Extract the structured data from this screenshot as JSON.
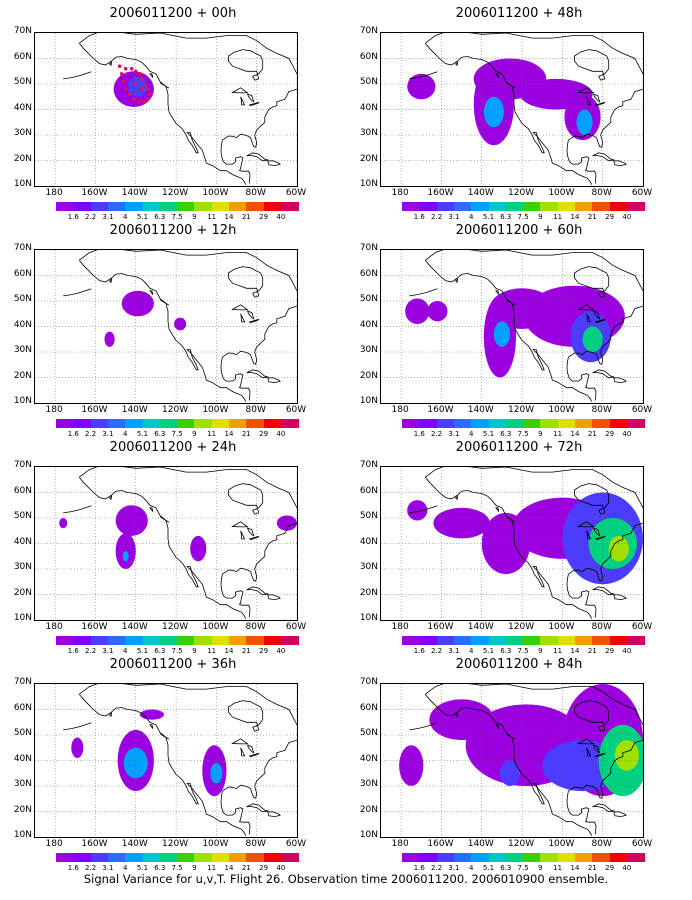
{
  "panels": [
    {
      "title": "2006011200 + 00h",
      "blobs": [
        {
          "lon": -141,
          "lat": 48,
          "rlon": 10,
          "rlat": 7,
          "level": 0
        },
        {
          "lon": -139,
          "lat": 49,
          "rlon": 5,
          "rlat": 4,
          "level": 1
        }
      ],
      "dots": true
    },
    {
      "title": "2006011200 + 48h",
      "blobs": [
        {
          "lon": -170,
          "lat": 49,
          "rlon": 7,
          "rlat": 5,
          "level": 0
        },
        {
          "lon": -134,
          "lat": 42,
          "rlon": 10,
          "rlat": 16,
          "level": 0
        },
        {
          "lon": -126,
          "lat": 52,
          "rlon": 18,
          "rlat": 8,
          "level": 0
        },
        {
          "lon": -103,
          "lat": 46,
          "rlon": 18,
          "rlat": 6,
          "level": 0
        },
        {
          "lon": -90,
          "lat": 37,
          "rlon": 9,
          "rlat": 9,
          "level": 0
        },
        {
          "lon": -134,
          "lat": 39,
          "rlon": 5,
          "rlat": 6,
          "level": 2
        },
        {
          "lon": -89,
          "lat": 35,
          "rlon": 4,
          "rlat": 5,
          "level": 2
        }
      ]
    },
    {
      "title": "2006011200 + 12h",
      "blobs": [
        {
          "lon": -139,
          "lat": 49,
          "rlon": 8,
          "rlat": 5,
          "level": 0
        },
        {
          "lon": -153,
          "lat": 35,
          "rlon": 2.5,
          "rlat": 3,
          "level": 0
        },
        {
          "lon": -118,
          "lat": 41,
          "rlon": 3,
          "rlat": 2.5,
          "level": 0
        }
      ]
    },
    {
      "title": "2006011200 + 60h",
      "blobs": [
        {
          "lon": -172,
          "lat": 46,
          "rlon": 6,
          "rlat": 5,
          "level": 0
        },
        {
          "lon": -162,
          "lat": 46,
          "rlon": 5,
          "rlat": 4,
          "level": 0
        },
        {
          "lon": -131,
          "lat": 36,
          "rlon": 8,
          "rlat": 16,
          "level": 0
        },
        {
          "lon": -120,
          "lat": 47,
          "rlon": 16,
          "rlat": 8,
          "level": 0
        },
        {
          "lon": -94,
          "lat": 44,
          "rlon": 25,
          "rlat": 12,
          "level": 0
        },
        {
          "lon": -86,
          "lat": 36,
          "rlon": 10,
          "rlat": 10,
          "level": 1
        },
        {
          "lon": -130,
          "lat": 37,
          "rlon": 4,
          "rlat": 5,
          "level": 2
        },
        {
          "lon": -85,
          "lat": 35,
          "rlon": 5,
          "rlat": 5,
          "level": 3
        }
      ]
    },
    {
      "title": "2006011200 + 24h",
      "blobs": [
        {
          "lon": -176,
          "lat": 48,
          "rlon": 2,
          "rlat": 2,
          "level": 0
        },
        {
          "lon": -142,
          "lat": 49,
          "rlon": 8,
          "rlat": 6,
          "level": 0
        },
        {
          "lon": -145,
          "lat": 37,
          "rlon": 5,
          "rlat": 7,
          "level": 0
        },
        {
          "lon": -109,
          "lat": 38,
          "rlon": 4,
          "rlat": 5,
          "level": 0
        },
        {
          "lon": -65,
          "lat": 48,
          "rlon": 5,
          "rlat": 3,
          "level": 0
        },
        {
          "lon": -145,
          "lat": 35,
          "rlon": 1.5,
          "rlat": 2,
          "level": 2
        }
      ]
    },
    {
      "title": "2006011200 + 72h",
      "blobs": [
        {
          "lon": -172,
          "lat": 53,
          "rlon": 5,
          "rlat": 4,
          "level": 0
        },
        {
          "lon": -150,
          "lat": 48,
          "rlon": 14,
          "rlat": 6,
          "level": 0
        },
        {
          "lon": -128,
          "lat": 40,
          "rlon": 12,
          "rlat": 12,
          "level": 0
        },
        {
          "lon": -100,
          "lat": 46,
          "rlon": 25,
          "rlat": 12,
          "level": 0
        },
        {
          "lon": -80,
          "lat": 42,
          "rlon": 20,
          "rlat": 18,
          "level": 1
        },
        {
          "lon": -75,
          "lat": 40,
          "rlon": 12,
          "rlat": 10,
          "level": 3
        },
        {
          "lon": -72,
          "lat": 38,
          "rlon": 5,
          "rlat": 5,
          "level": 4
        }
      ]
    },
    {
      "title": "2006011200 + 36h",
      "blobs": [
        {
          "lon": -169,
          "lat": 45,
          "rlon": 3,
          "rlat": 4,
          "level": 0
        },
        {
          "lon": -140,
          "lat": 40,
          "rlon": 9,
          "rlat": 12,
          "level": 0
        },
        {
          "lon": -140,
          "lat": 39,
          "rlon": 6,
          "rlat": 6,
          "level": 2
        },
        {
          "lon": -101,
          "lat": 36,
          "rlon": 6,
          "rlat": 10,
          "level": 0
        },
        {
          "lon": -100,
          "lat": 35,
          "rlon": 3,
          "rlat": 4,
          "level": 2
        },
        {
          "lon": -132,
          "lat": 58,
          "rlon": 6,
          "rlat": 2,
          "level": 0
        }
      ]
    },
    {
      "title": "2006011200 + 84h",
      "blobs": [
        {
          "lon": -175,
          "lat": 38,
          "rlon": 6,
          "rlat": 8,
          "level": 0
        },
        {
          "lon": -150,
          "lat": 56,
          "rlon": 16,
          "rlat": 8,
          "level": 0
        },
        {
          "lon": -118,
          "lat": 46,
          "rlon": 30,
          "rlat": 16,
          "level": 0
        },
        {
          "lon": -80,
          "lat": 48,
          "rlon": 20,
          "rlat": 22,
          "level": 0
        },
        {
          "lon": -90,
          "lat": 38,
          "rlon": 20,
          "rlat": 10,
          "level": 1
        },
        {
          "lon": -70,
          "lat": 40,
          "rlon": 12,
          "rlat": 14,
          "level": 3
        },
        {
          "lon": -68,
          "lat": 42,
          "rlon": 6,
          "rlat": 6,
          "level": 4
        },
        {
          "lon": -126,
          "lat": 35,
          "rlon": 5,
          "rlat": 5,
          "level": 1
        }
      ]
    }
  ],
  "yaxis_labels": [
    "70N",
    "60N",
    "50N",
    "40N",
    "30N",
    "20N",
    "10N"
  ],
  "xaxis_labels": [
    "180",
    "160W",
    "140W",
    "120W",
    "100W",
    "80W",
    "60W"
  ],
  "colorbar": {
    "labels": [
      "1.6",
      "2.2",
      "3.1",
      "4",
      "5.1",
      "6.3",
      "7.5",
      "9",
      "11",
      "14",
      "21",
      "29",
      "40"
    ],
    "colors": [
      "#9b00e0",
      "#7f00ff",
      "#4b3cff",
      "#2a6cff",
      "#00a0ff",
      "#00c8c8",
      "#00d080",
      "#38d000",
      "#a0e000",
      "#e0e000",
      "#f0a000",
      "#f05000",
      "#f00000",
      "#d00060"
    ]
  },
  "caption": "Signal Variance for u,v,T. Flight 26. Observation time 2006011200. 2006010900 ensemble."
}
